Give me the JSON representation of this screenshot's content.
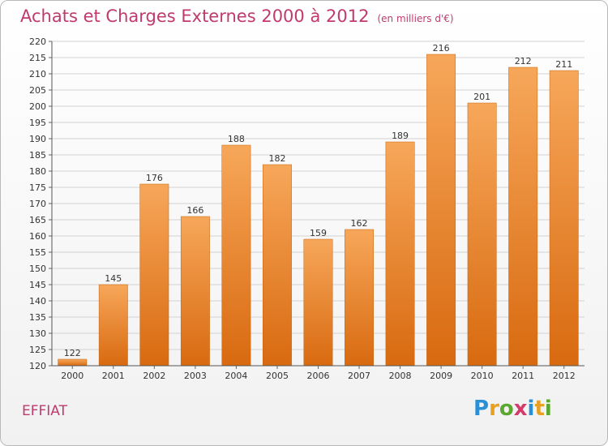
{
  "title": "Achats et Charges Externes 2000 à 2012",
  "unit": "(en milliers d'€)",
  "place": "EFFIAT",
  "logo": {
    "letters": [
      "P",
      "r",
      "o",
      "x",
      "i",
      "t",
      "i"
    ],
    "colors": [
      "#2a8fd4",
      "#e8a020",
      "#5aa830",
      "#d43a6a",
      "#2a8fd4",
      "#e8a020",
      "#5aa830"
    ]
  },
  "colors": {
    "bar_top": "#f7a75a",
    "bar_bottom": "#d86a10",
    "title": "#c03a6e",
    "grid": "#d2d2d2"
  },
  "chart_data": {
    "type": "bar",
    "title": "Achats et Charges Externes 2000 à 2012",
    "categories": [
      "2000",
      "2001",
      "2002",
      "2003",
      "2004",
      "2005",
      "2006",
      "2007",
      "2008",
      "2009",
      "2010",
      "2011",
      "2012"
    ],
    "values": [
      122,
      145,
      176,
      166,
      188,
      182,
      159,
      162,
      189,
      216,
      201,
      212,
      211
    ],
    "ylim": [
      120,
      220
    ],
    "yticks": [
      120,
      125,
      130,
      135,
      140,
      145,
      150,
      155,
      160,
      165,
      170,
      175,
      180,
      185,
      190,
      195,
      200,
      205,
      210,
      215,
      220
    ],
    "grid": true,
    "data_labels": true,
    "xlabel": "",
    "ylabel": ""
  }
}
